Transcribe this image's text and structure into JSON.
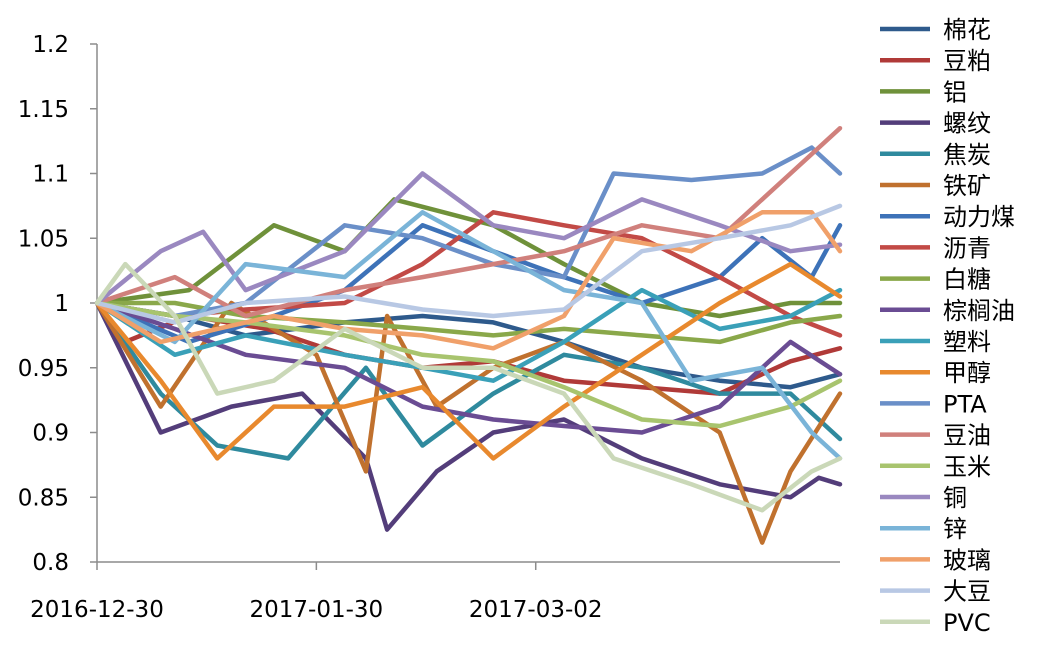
{
  "chart_data": {
    "type": "line",
    "title": "",
    "xlabel": "",
    "ylabel": "",
    "ylim": [
      0.8,
      1.2
    ],
    "yticks": [
      "0.8",
      "0.85",
      "0.9",
      "0.95",
      "1",
      "1.05",
      "1.1",
      "1.15",
      "1.2"
    ],
    "xlim": [
      "2016-12-30",
      "2017-04-14"
    ],
    "xticks": [
      "2016-12-30",
      "2017-01-30",
      "2017-03-02"
    ],
    "grid": false,
    "legend_position": "right",
    "series": [
      {
        "name": "棉花",
        "color": "#2e5a8c",
        "points": [
          [
            "2016-12-30",
            1.0
          ],
          [
            "2017-01-10",
            0.99
          ],
          [
            "2017-01-20",
            0.975
          ],
          [
            "2017-02-03",
            0.985
          ],
          [
            "2017-02-14",
            0.99
          ],
          [
            "2017-02-24",
            0.985
          ],
          [
            "2017-03-06",
            0.97
          ],
          [
            "2017-03-17",
            0.95
          ],
          [
            "2017-03-28",
            0.94
          ],
          [
            "2017-04-07",
            0.935
          ],
          [
            "2017-04-14",
            0.945
          ]
        ]
      },
      {
        "name": "豆粕",
        "color": "#b03a38",
        "points": [
          [
            "2016-12-30",
            1.0
          ],
          [
            "2017-01-03",
            0.97
          ],
          [
            "2017-01-12",
            0.99
          ],
          [
            "2017-01-23",
            0.98
          ],
          [
            "2017-02-03",
            0.96
          ],
          [
            "2017-02-14",
            0.95
          ],
          [
            "2017-02-24",
            0.955
          ],
          [
            "2017-03-06",
            0.94
          ],
          [
            "2017-03-17",
            0.935
          ],
          [
            "2017-03-28",
            0.93
          ],
          [
            "2017-04-07",
            0.955
          ],
          [
            "2017-04-14",
            0.965
          ]
        ]
      },
      {
        "name": "铝",
        "color": "#6f913a",
        "points": [
          [
            "2016-12-30",
            1.0
          ],
          [
            "2017-01-12",
            1.01
          ],
          [
            "2017-01-24",
            1.06
          ],
          [
            "2017-02-03",
            1.04
          ],
          [
            "2017-02-10",
            1.08
          ],
          [
            "2017-02-17",
            1.07
          ],
          [
            "2017-02-24",
            1.06
          ],
          [
            "2017-03-06",
            1.03
          ],
          [
            "2017-03-17",
            1.0
          ],
          [
            "2017-03-28",
            0.99
          ],
          [
            "2017-04-07",
            1.0
          ],
          [
            "2017-04-14",
            1.0
          ]
        ]
      },
      {
        "name": "螺纹",
        "color": "#533d7a",
        "points": [
          [
            "2016-12-30",
            1.0
          ],
          [
            "2017-01-08",
            0.9
          ],
          [
            "2017-01-18",
            0.92
          ],
          [
            "2017-01-28",
            0.93
          ],
          [
            "2017-02-06",
            0.88
          ],
          [
            "2017-02-09",
            0.825
          ],
          [
            "2017-02-16",
            0.87
          ],
          [
            "2017-02-24",
            0.9
          ],
          [
            "2017-03-06",
            0.91
          ],
          [
            "2017-03-17",
            0.88
          ],
          [
            "2017-03-28",
            0.86
          ],
          [
            "2017-04-07",
            0.85
          ],
          [
            "2017-04-11",
            0.865
          ],
          [
            "2017-04-14",
            0.86
          ]
        ]
      },
      {
        "name": "焦炭",
        "color": "#2f8a9e",
        "points": [
          [
            "2016-12-30",
            1.0
          ],
          [
            "2017-01-08",
            0.93
          ],
          [
            "2017-01-16",
            0.89
          ],
          [
            "2017-01-26",
            0.88
          ],
          [
            "2017-02-06",
            0.95
          ],
          [
            "2017-02-14",
            0.89
          ],
          [
            "2017-02-24",
            0.93
          ],
          [
            "2017-03-06",
            0.96
          ],
          [
            "2017-03-17",
            0.95
          ],
          [
            "2017-03-28",
            0.93
          ],
          [
            "2017-04-07",
            0.93
          ],
          [
            "2017-04-14",
            0.895
          ]
        ]
      },
      {
        "name": "铁矿",
        "color": "#c0712e",
        "points": [
          [
            "2016-12-30",
            1.0
          ],
          [
            "2017-01-08",
            0.92
          ],
          [
            "2017-01-18",
            1.0
          ],
          [
            "2017-01-30",
            0.96
          ],
          [
            "2017-02-06",
            0.87
          ],
          [
            "2017-02-09",
            0.99
          ],
          [
            "2017-02-16",
            0.92
          ],
          [
            "2017-02-24",
            0.95
          ],
          [
            "2017-03-06",
            0.97
          ],
          [
            "2017-03-17",
            0.94
          ],
          [
            "2017-03-28",
            0.9
          ],
          [
            "2017-04-03",
            0.815
          ],
          [
            "2017-04-07",
            0.87
          ],
          [
            "2017-04-14",
            0.93
          ]
        ]
      },
      {
        "name": "动力煤",
        "color": "#3d72b8",
        "points": [
          [
            "2016-12-30",
            1.0
          ],
          [
            "2017-01-12",
            0.97
          ],
          [
            "2017-01-24",
            0.99
          ],
          [
            "2017-02-03",
            1.01
          ],
          [
            "2017-02-14",
            1.06
          ],
          [
            "2017-02-24",
            1.04
          ],
          [
            "2017-03-06",
            1.02
          ],
          [
            "2017-03-17",
            1.0
          ],
          [
            "2017-03-28",
            1.02
          ],
          [
            "2017-04-03",
            1.05
          ],
          [
            "2017-04-10",
            1.02
          ],
          [
            "2017-04-14",
            1.06
          ]
        ]
      },
      {
        "name": "沥青",
        "color": "#c24a46",
        "points": [
          [
            "2016-12-30",
            1.0
          ],
          [
            "2017-01-10",
            0.99
          ],
          [
            "2017-01-20",
            0.995
          ],
          [
            "2017-02-03",
            1.0
          ],
          [
            "2017-02-14",
            1.03
          ],
          [
            "2017-02-24",
            1.07
          ],
          [
            "2017-03-06",
            1.06
          ],
          [
            "2017-03-17",
            1.05
          ],
          [
            "2017-03-28",
            1.02
          ],
          [
            "2017-04-07",
            0.99
          ],
          [
            "2017-04-14",
            0.975
          ]
        ]
      },
      {
        "name": "白糖",
        "color": "#8aa84a",
        "points": [
          [
            "2016-12-30",
            1.0
          ],
          [
            "2017-01-10",
            1.0
          ],
          [
            "2017-01-20",
            0.99
          ],
          [
            "2017-02-03",
            0.985
          ],
          [
            "2017-02-14",
            0.98
          ],
          [
            "2017-02-24",
            0.975
          ],
          [
            "2017-03-06",
            0.98
          ],
          [
            "2017-03-17",
            0.975
          ],
          [
            "2017-03-28",
            0.97
          ],
          [
            "2017-04-07",
            0.985
          ],
          [
            "2017-04-14",
            0.99
          ]
        ]
      },
      {
        "name": "棕榈油",
        "color": "#6a4c93",
        "points": [
          [
            "2016-12-30",
            1.0
          ],
          [
            "2017-01-10",
            0.98
          ],
          [
            "2017-01-20",
            0.96
          ],
          [
            "2017-02-03",
            0.95
          ],
          [
            "2017-02-14",
            0.92
          ],
          [
            "2017-02-24",
            0.91
          ],
          [
            "2017-03-06",
            0.905
          ],
          [
            "2017-03-17",
            0.9
          ],
          [
            "2017-03-28",
            0.92
          ],
          [
            "2017-04-07",
            0.97
          ],
          [
            "2017-04-14",
            0.945
          ]
        ]
      },
      {
        "name": "塑料",
        "color": "#3aa0b8",
        "points": [
          [
            "2016-12-30",
            1.0
          ],
          [
            "2017-01-10",
            0.96
          ],
          [
            "2017-01-20",
            0.975
          ],
          [
            "2017-02-03",
            0.96
          ],
          [
            "2017-02-14",
            0.95
          ],
          [
            "2017-02-24",
            0.94
          ],
          [
            "2017-03-06",
            0.97
          ],
          [
            "2017-03-17",
            1.01
          ],
          [
            "2017-03-28",
            0.98
          ],
          [
            "2017-04-07",
            0.99
          ],
          [
            "2017-04-14",
            1.01
          ]
        ]
      },
      {
        "name": "甲醇",
        "color": "#e8892e",
        "points": [
          [
            "2016-12-30",
            1.0
          ],
          [
            "2017-01-08",
            0.94
          ],
          [
            "2017-01-16",
            0.88
          ],
          [
            "2017-01-24",
            0.92
          ],
          [
            "2017-02-03",
            0.92
          ],
          [
            "2017-02-14",
            0.935
          ],
          [
            "2017-02-24",
            0.88
          ],
          [
            "2017-03-06",
            0.92
          ],
          [
            "2017-03-17",
            0.96
          ],
          [
            "2017-03-28",
            1.0
          ],
          [
            "2017-04-07",
            1.03
          ],
          [
            "2017-04-14",
            1.005
          ]
        ]
      },
      {
        "name": "PTA",
        "color": "#6a8fc8",
        "points": [
          [
            "2016-12-30",
            1.0
          ],
          [
            "2017-01-10",
            0.99
          ],
          [
            "2017-01-20",
            1.0
          ],
          [
            "2017-02-03",
            1.06
          ],
          [
            "2017-02-14",
            1.05
          ],
          [
            "2017-02-24",
            1.03
          ],
          [
            "2017-03-06",
            1.02
          ],
          [
            "2017-03-13",
            1.1
          ],
          [
            "2017-03-24",
            1.095
          ],
          [
            "2017-04-03",
            1.1
          ],
          [
            "2017-04-10",
            1.12
          ],
          [
            "2017-04-14",
            1.1
          ]
        ]
      },
      {
        "name": "豆油",
        "color": "#d0807c",
        "points": [
          [
            "2016-12-30",
            1.0
          ],
          [
            "2017-01-10",
            1.02
          ],
          [
            "2017-01-20",
            0.99
          ],
          [
            "2017-02-03",
            1.01
          ],
          [
            "2017-02-14",
            1.02
          ],
          [
            "2017-02-24",
            1.03
          ],
          [
            "2017-03-06",
            1.04
          ],
          [
            "2017-03-17",
            1.06
          ],
          [
            "2017-03-28",
            1.05
          ],
          [
            "2017-04-07",
            1.1
          ],
          [
            "2017-04-14",
            1.135
          ]
        ]
      },
      {
        "name": "玉米",
        "color": "#a8c46e",
        "points": [
          [
            "2016-12-30",
            1.0
          ],
          [
            "2017-01-10",
            0.99
          ],
          [
            "2017-01-20",
            0.985
          ],
          [
            "2017-02-03",
            0.975
          ],
          [
            "2017-02-14",
            0.96
          ],
          [
            "2017-02-24",
            0.955
          ],
          [
            "2017-03-06",
            0.935
          ],
          [
            "2017-03-17",
            0.91
          ],
          [
            "2017-03-28",
            0.905
          ],
          [
            "2017-04-07",
            0.92
          ],
          [
            "2017-04-14",
            0.94
          ]
        ]
      },
      {
        "name": "铜",
        "color": "#9a88c0",
        "points": [
          [
            "2016-12-30",
            1.0
          ],
          [
            "2017-01-08",
            1.04
          ],
          [
            "2017-01-14",
            1.055
          ],
          [
            "2017-01-20",
            1.01
          ],
          [
            "2017-02-03",
            1.04
          ],
          [
            "2017-02-14",
            1.1
          ],
          [
            "2017-02-24",
            1.06
          ],
          [
            "2017-03-06",
            1.05
          ],
          [
            "2017-03-17",
            1.08
          ],
          [
            "2017-03-28",
            1.06
          ],
          [
            "2017-04-07",
            1.04
          ],
          [
            "2017-04-14",
            1.045
          ]
        ]
      },
      {
        "name": "锌",
        "color": "#7ab4d8",
        "points": [
          [
            "2016-12-30",
            1.0
          ],
          [
            "2017-01-10",
            0.97
          ],
          [
            "2017-01-20",
            1.03
          ],
          [
            "2017-02-03",
            1.02
          ],
          [
            "2017-02-14",
            1.07
          ],
          [
            "2017-02-24",
            1.04
          ],
          [
            "2017-03-06",
            1.01
          ],
          [
            "2017-03-17",
            1.0
          ],
          [
            "2017-03-24",
            0.94
          ],
          [
            "2017-04-03",
            0.95
          ],
          [
            "2017-04-10",
            0.9
          ],
          [
            "2017-04-14",
            0.88
          ]
        ]
      },
      {
        "name": "玻璃",
        "color": "#f0a06a",
        "points": [
          [
            "2016-12-30",
            1.0
          ],
          [
            "2017-01-08",
            0.97
          ],
          [
            "2017-01-16",
            0.98
          ],
          [
            "2017-01-24",
            0.99
          ],
          [
            "2017-02-03",
            0.98
          ],
          [
            "2017-02-14",
            0.975
          ],
          [
            "2017-02-24",
            0.965
          ],
          [
            "2017-03-06",
            0.99
          ],
          [
            "2017-03-13",
            1.05
          ],
          [
            "2017-03-24",
            1.04
          ],
          [
            "2017-04-03",
            1.07
          ],
          [
            "2017-04-10",
            1.07
          ],
          [
            "2017-04-14",
            1.04
          ]
        ]
      },
      {
        "name": "大豆",
        "color": "#b8c8e4",
        "points": [
          [
            "2016-12-30",
            1.0
          ],
          [
            "2017-01-10",
            0.985
          ],
          [
            "2017-01-20",
            1.0
          ],
          [
            "2017-02-03",
            1.005
          ],
          [
            "2017-02-14",
            0.995
          ],
          [
            "2017-02-24",
            0.99
          ],
          [
            "2017-03-06",
            0.995
          ],
          [
            "2017-03-17",
            1.04
          ],
          [
            "2017-03-28",
            1.05
          ],
          [
            "2017-04-07",
            1.06
          ],
          [
            "2017-04-14",
            1.075
          ]
        ]
      },
      {
        "name": "PVC",
        "color": "#cad8b8",
        "points": [
          [
            "2016-12-30",
            1.0
          ],
          [
            "2017-01-03",
            1.03
          ],
          [
            "2017-01-10",
            0.99
          ],
          [
            "2017-01-16",
            0.93
          ],
          [
            "2017-01-24",
            0.94
          ],
          [
            "2017-02-03",
            0.98
          ],
          [
            "2017-02-14",
            0.95
          ],
          [
            "2017-02-24",
            0.95
          ],
          [
            "2017-03-06",
            0.93
          ],
          [
            "2017-03-13",
            0.88
          ],
          [
            "2017-03-24",
            0.86
          ],
          [
            "2017-04-03",
            0.84
          ],
          [
            "2017-04-10",
            0.87
          ],
          [
            "2017-04-14",
            0.88
          ]
        ]
      }
    ]
  }
}
